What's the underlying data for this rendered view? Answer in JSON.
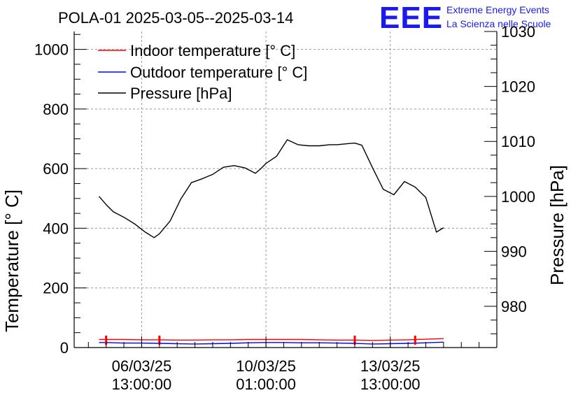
{
  "chart_data": {
    "type": "line",
    "title": "POLA-01 2025-03-05--2025-03-14",
    "ylabel": "Temperature [° C]",
    "y2label": "Pressure [hPa]",
    "xlabel": "",
    "ylim": [
      0,
      1060
    ],
    "y2lim": [
      972.5,
      1030
    ],
    "y_ticks": [
      0,
      200,
      400,
      600,
      800,
      1000
    ],
    "y2_ticks": [
      980,
      990,
      1000,
      1010,
      1020,
      1030
    ],
    "x_ticks": [
      {
        "date": "06/03/25",
        "time": "13:00:00",
        "day": 1.5
      },
      {
        "date": "10/03/25",
        "time": "01:00:00",
        "day": 5.0
      },
      {
        "date": "13/03/25",
        "time": "13:00:00",
        "day": 8.5
      }
    ],
    "x_range_days": [
      -0.4,
      11.5
    ],
    "grid": true,
    "legend_position": "top-left",
    "series": [
      {
        "name": "Indoor temperature [° C]",
        "color": "#ff0000",
        "axis": "left",
        "x": [
          0.3,
          0.5,
          1.0,
          1.5,
          2.0,
          2.5,
          3.0,
          3.5,
          4.0,
          4.5,
          5.0,
          5.5,
          6.0,
          6.5,
          7.0,
          7.5,
          8.0,
          8.5,
          9.0,
          9.5,
          10.0
        ],
        "y": [
          27,
          27,
          27,
          26,
          26,
          25,
          25,
          26,
          26,
          27,
          27,
          27,
          27,
          26,
          25,
          25,
          24,
          25,
          26,
          28,
          30
        ]
      },
      {
        "name": "Outdoor temperature [° C]",
        "color": "#0000ff",
        "axis": "left",
        "x": [
          0.3,
          0.5,
          1.0,
          1.5,
          2.0,
          2.5,
          3.0,
          3.5,
          4.0,
          4.5,
          5.0,
          5.5,
          6.0,
          6.5,
          7.0,
          7.5,
          8.0,
          8.5,
          9.0,
          9.5,
          10.0
        ],
        "y": [
          17,
          17,
          15,
          15,
          14,
          13,
          12,
          13,
          14,
          16,
          17,
          17,
          16,
          16,
          15,
          14,
          12,
          13,
          14,
          16,
          18
        ]
      },
      {
        "name": "Pressure [hPa]",
        "color": "#000000",
        "axis": "right",
        "x": [
          0.3,
          0.5,
          0.7,
          1.0,
          1.3,
          1.6,
          1.85,
          2.0,
          2.3,
          2.6,
          2.9,
          3.2,
          3.5,
          3.8,
          4.1,
          4.4,
          4.7,
          4.85,
          5.0,
          5.3,
          5.6,
          5.9,
          6.2,
          6.5,
          6.8,
          7.0,
          7.3,
          7.5,
          7.7,
          8.0,
          8.3,
          8.6,
          8.9,
          9.2,
          9.5,
          9.8,
          10.0
        ],
        "y": [
          1000.0,
          998.5,
          997.2,
          996.2,
          995.0,
          993.5,
          992.5,
          993.2,
          995.5,
          999.5,
          1002.5,
          1003.2,
          1004.0,
          1005.3,
          1005.6,
          1005.2,
          1004.2,
          1005.0,
          1006.0,
          1007.3,
          1010.3,
          1009.4,
          1009.2,
          1009.2,
          1009.4,
          1009.4,
          1009.6,
          1009.7,
          1009.3,
          1005.2,
          1001.3,
          1000.3,
          1002.7,
          1001.7,
          999.8,
          993.5,
          994.3
        ]
      }
    ]
  },
  "logo": {
    "letters": "EEE",
    "line1": "Extreme Energy Events",
    "line2": "La Scienza nelle Scuole"
  }
}
